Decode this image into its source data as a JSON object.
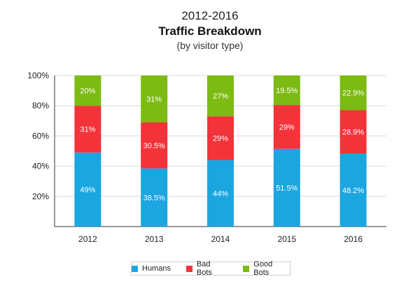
{
  "titles": {
    "period": "2012-2016",
    "main": "Traffic Breakdown",
    "subtitle": "(by visitor type)"
  },
  "chart_data": {
    "type": "bar",
    "stacked": true,
    "categories": [
      "2012",
      "2013",
      "2014",
      "2015",
      "2016"
    ],
    "series": [
      {
        "name": "Humans",
        "color": "#1ba6e0",
        "values": [
          49,
          38.5,
          44,
          51.5,
          48.2
        ],
        "labels": [
          "49%",
          "38.5%",
          "44%",
          "51.5%",
          "48.2%"
        ]
      },
      {
        "name": "Bad Bots",
        "color": "#f2343a",
        "values": [
          31,
          30.5,
          29,
          29,
          28.9
        ],
        "labels": [
          "31%",
          "30.5%",
          "29%",
          "29%",
          "28.9%"
        ]
      },
      {
        "name": "Good Bots",
        "color": "#7cbb13",
        "values": [
          20,
          31,
          27,
          19.5,
          22.9
        ],
        "labels": [
          "20%",
          "31%",
          "27%",
          "19.5%",
          "22.9%"
        ]
      }
    ],
    "ylim": [
      0,
      100
    ],
    "yticks": [
      20,
      40,
      60,
      80,
      100
    ],
    "ytick_labels": [
      "20%",
      "40%",
      "60%",
      "80%",
      "100%"
    ],
    "grid": true,
    "legend_position": "bottom"
  }
}
